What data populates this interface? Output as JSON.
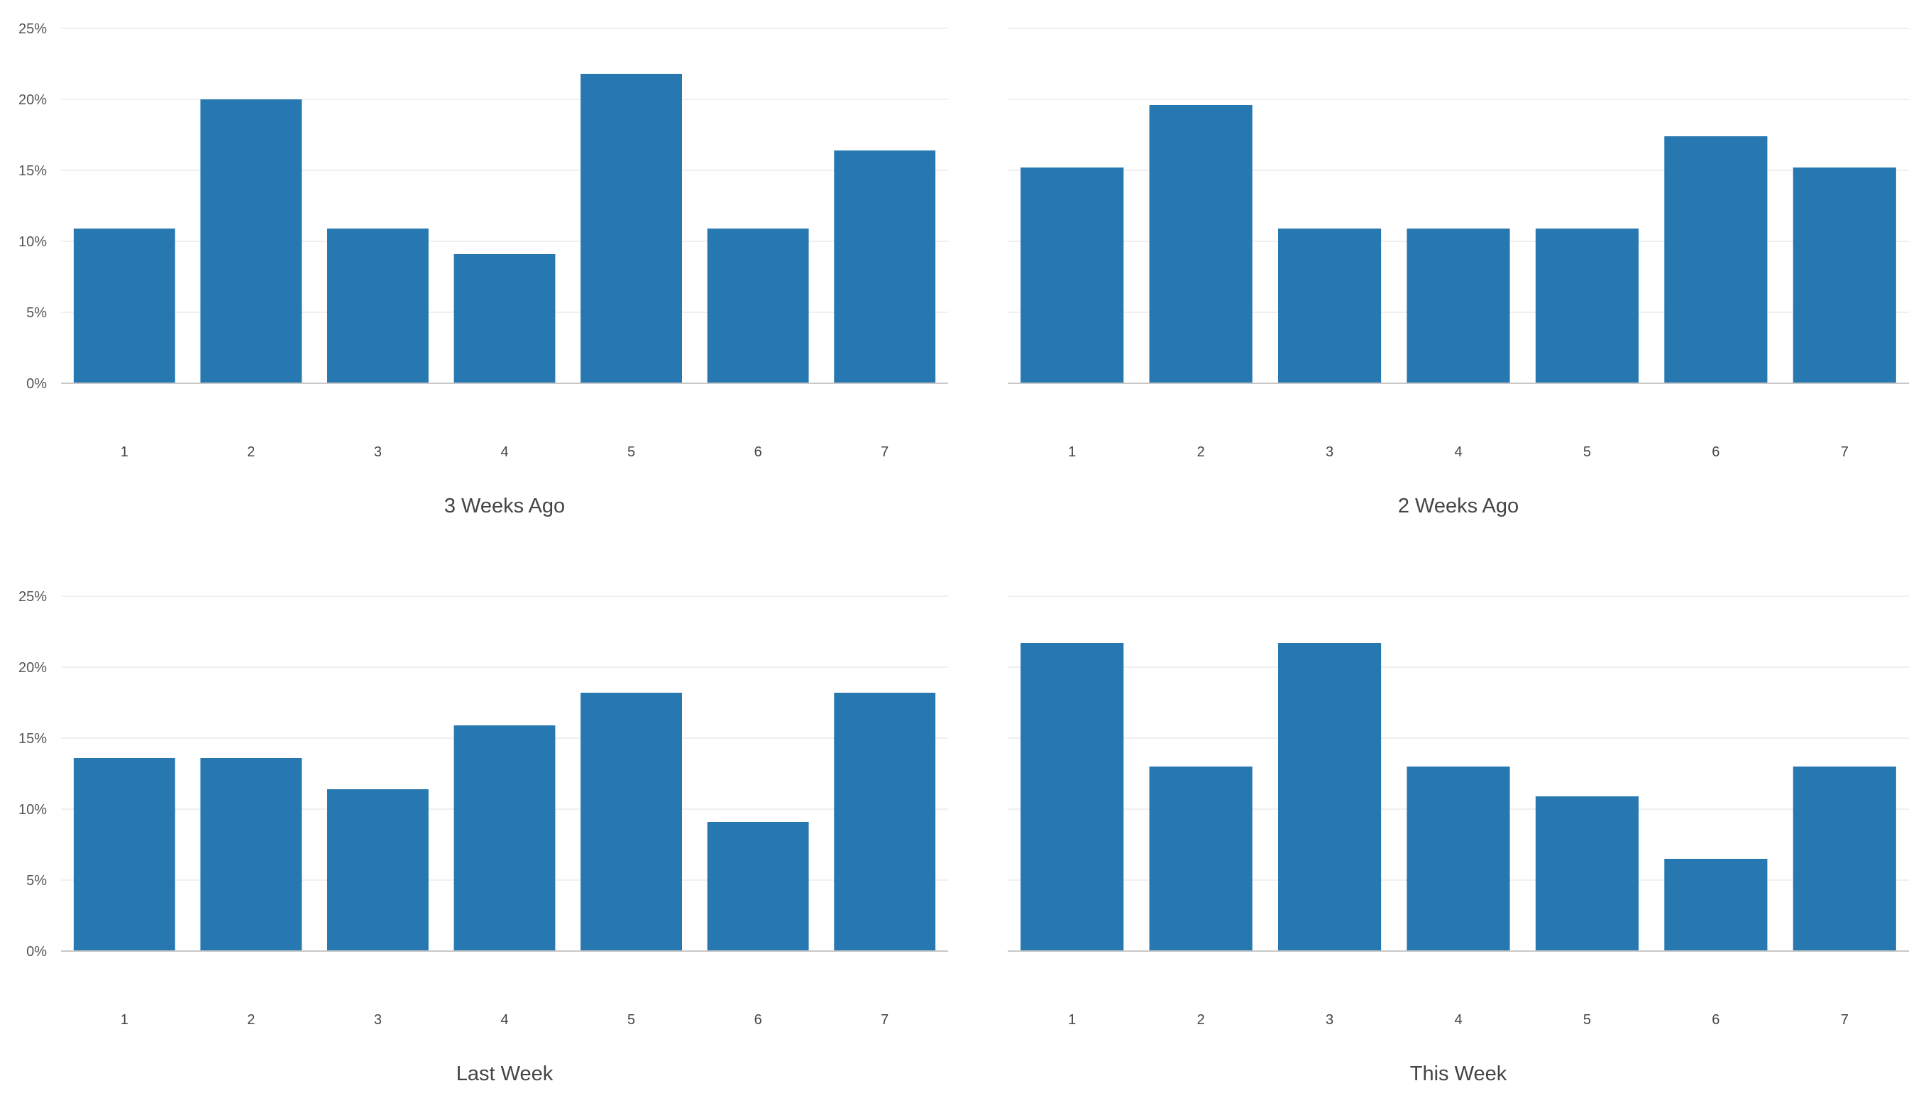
{
  "theme": {
    "bar_color": "#2778b1",
    "grid_color": "#ebebeb",
    "axis_color": "#c8c8c8",
    "text_color": "#444444"
  },
  "chart_data": [
    {
      "type": "bar",
      "title": "3 Weeks Ago",
      "categories": [
        "1",
        "2",
        "3",
        "4",
        "5",
        "6",
        "7"
      ],
      "values": [
        10.9,
        20.0,
        10.9,
        9.1,
        21.8,
        10.9,
        16.4
      ],
      "ylim": [
        0,
        25
      ],
      "yticks": [
        "0%",
        "5%",
        "10%",
        "15%",
        "20%",
        "25%"
      ],
      "show_ytick_labels": true,
      "grid": true
    },
    {
      "type": "bar",
      "title": "2 Weeks Ago",
      "categories": [
        "1",
        "2",
        "3",
        "4",
        "5",
        "6",
        "7"
      ],
      "values": [
        15.2,
        19.6,
        10.9,
        10.9,
        10.9,
        17.4,
        15.2
      ],
      "ylim": [
        0,
        25
      ],
      "yticks": [
        "0%",
        "5%",
        "10%",
        "15%",
        "20%",
        "25%"
      ],
      "show_ytick_labels": false,
      "grid": true
    },
    {
      "type": "bar",
      "title": "Last Week",
      "categories": [
        "1",
        "2",
        "3",
        "4",
        "5",
        "6",
        "7"
      ],
      "values": [
        13.6,
        13.6,
        11.4,
        15.9,
        18.2,
        9.1,
        18.2
      ],
      "ylim": [
        0,
        25
      ],
      "yticks": [
        "0%",
        "5%",
        "10%",
        "15%",
        "20%",
        "25%"
      ],
      "show_ytick_labels": true,
      "grid": true
    },
    {
      "type": "bar",
      "title": "This Week",
      "categories": [
        "1",
        "2",
        "3",
        "4",
        "5",
        "6",
        "7"
      ],
      "values": [
        21.7,
        13.0,
        21.7,
        13.0,
        10.9,
        6.5,
        13.0
      ],
      "ylim": [
        0,
        25
      ],
      "yticks": [
        "0%",
        "5%",
        "10%",
        "15%",
        "20%",
        "25%"
      ],
      "show_ytick_labels": false,
      "grid": true
    }
  ]
}
